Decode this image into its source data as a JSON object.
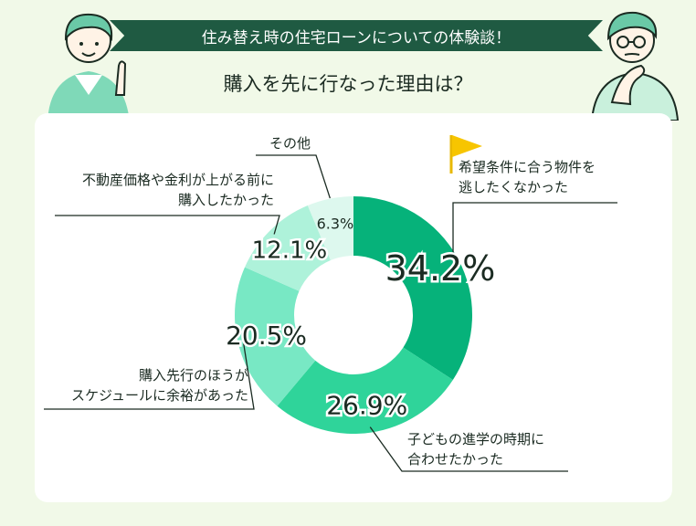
{
  "banner": {
    "title": "住み替え時の住宅ローンについての体験談！"
  },
  "question": {
    "text": "購入を先に行なった理由は？"
  },
  "chart_data": {
    "type": "pie",
    "donut": true,
    "slices": [
      {
        "label": "希望条件に合う物件を逃したくなかった",
        "label_lines": [
          "希望条件に合う物件を",
          "逃したくなかった"
        ],
        "value": 34.2,
        "display": "34.2%",
        "color": "#06b27a"
      },
      {
        "label": "子どもの進学の時期に合わせたかった",
        "label_lines": [
          "子どもの進学の時期に",
          "合わせたかった"
        ],
        "value": 26.9,
        "display": "26.9%",
        "color": "#2fd49a"
      },
      {
        "label": "購入先行のほうがスケジュールに余裕があった",
        "label_lines": [
          "購入先行のほうが",
          "スケジュールに余裕があった"
        ],
        "value": 20.5,
        "display": "20.5%",
        "color": "#78e8c4"
      },
      {
        "label": "不動産価格や金利が上がる前に購入したかった",
        "label_lines": [
          "不動産価格や金利が上がる前に",
          "購入したかった"
        ],
        "value": 12.1,
        "display": "12.1%",
        "color": "#aef2da"
      },
      {
        "label": "その他",
        "label_lines": [
          "その他"
        ],
        "value": 6.3,
        "display": "6.3%",
        "color": "#ddf8ee"
      }
    ]
  }
}
